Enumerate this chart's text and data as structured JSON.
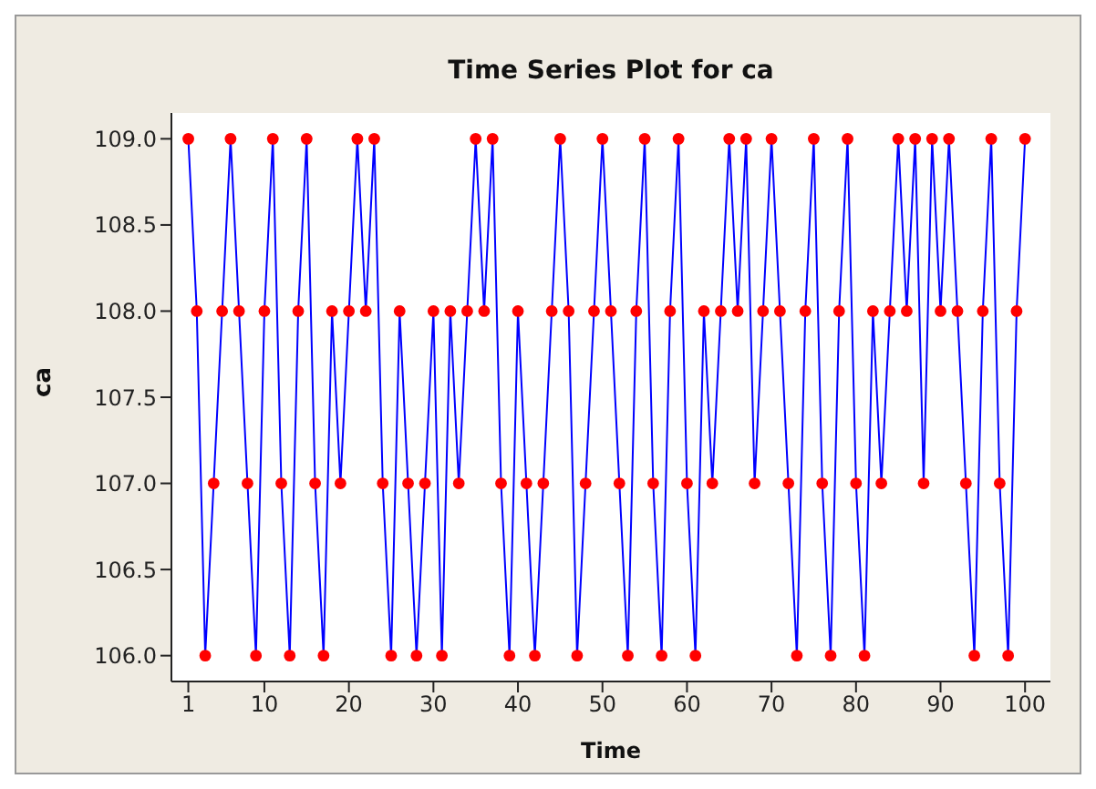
{
  "chart_data": {
    "type": "line",
    "title": "Time Series Plot for ca",
    "xlabel": "Time",
    "ylabel": "ca",
    "x": [
      1,
      2,
      3,
      4,
      5,
      6,
      7,
      8,
      9,
      10,
      11,
      12,
      13,
      14,
      15,
      16,
      17,
      18,
      19,
      20,
      21,
      22,
      23,
      24,
      25,
      26,
      27,
      28,
      29,
      30,
      31,
      32,
      33,
      34,
      35,
      36,
      37,
      38,
      39,
      40,
      41,
      42,
      43,
      44,
      45,
      46,
      47,
      48,
      49,
      50,
      51,
      52,
      53,
      54,
      55,
      56,
      57,
      58,
      59,
      60,
      61,
      62,
      63,
      64,
      65,
      66,
      67,
      68,
      69,
      70,
      71,
      72,
      73,
      74,
      75,
      76,
      77,
      78,
      79,
      80,
      81,
      82,
      83,
      84,
      85,
      86,
      87,
      88,
      89,
      90,
      91,
      92,
      93,
      94,
      95,
      96,
      97,
      98,
      99,
      100
    ],
    "series": [
      {
        "color": "#0000ff",
        "values": [
          109,
          108,
          106,
          107,
          108,
          109,
          108,
          107,
          106,
          108,
          109,
          107,
          106,
          108,
          109,
          107,
          106,
          108,
          107,
          108,
          109,
          108,
          109,
          107,
          106,
          108,
          107,
          106,
          107,
          108,
          106,
          108,
          107,
          108,
          109,
          108,
          109,
          107,
          106,
          108,
          107,
          106,
          107,
          108,
          109,
          108,
          106,
          107,
          108,
          109,
          108,
          107,
          106,
          108,
          109,
          107,
          106,
          108,
          109,
          107,
          106,
          108,
          107,
          108,
          109,
          108,
          109,
          107,
          108,
          109,
          108,
          107,
          106,
          108,
          109,
          107,
          106,
          108,
          109,
          107,
          106,
          108,
          107,
          108,
          109,
          108,
          109,
          107,
          109,
          108,
          109,
          108,
          107,
          106,
          108,
          109,
          107,
          106,
          108,
          109
        ]
      }
    ],
    "marker": "circle",
    "line_style": "solid",
    "xlim": [
      -1,
      103
    ],
    "xticks": [
      1,
      10,
      20,
      30,
      40,
      50,
      60,
      70,
      80,
      90,
      100
    ],
    "ylim": [
      105.85,
      109.15
    ],
    "yticks": [
      {
        "value": 106,
        "label": "106.0"
      },
      {
        "value": 106.5,
        "label": "106.5"
      },
      {
        "value": 107,
        "label": "107.0"
      },
      {
        "value": 107.5,
        "label": "107.5"
      },
      {
        "value": 108,
        "label": "108.0"
      },
      {
        "value": 108.5,
        "label": "108.5"
      },
      {
        "value": 109,
        "label": "109.0"
      }
    ]
  }
}
